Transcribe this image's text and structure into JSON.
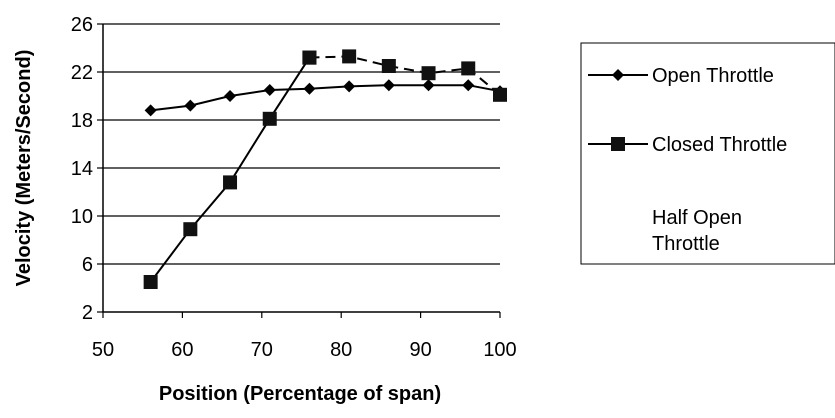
{
  "chart_data": {
    "type": "line",
    "title": "",
    "xlabel": "Position (Percentage of span)",
    "ylabel": "Velocity (Meters/Second)",
    "xlim": [
      50,
      100
    ],
    "ylim": [
      2,
      26
    ],
    "xticks": [
      50,
      60,
      70,
      80,
      90,
      100
    ],
    "yticks": [
      2,
      6,
      10,
      14,
      18,
      22,
      26
    ],
    "grid": "horizontal",
    "legend_position": "right",
    "series": [
      {
        "name": "Open Throttle",
        "marker": "diamond",
        "line_style": "solid",
        "color": "#000000",
        "x": [
          56,
          61,
          66,
          71,
          76,
          81,
          86,
          91,
          96,
          100
        ],
        "y": [
          18.8,
          19.2,
          20.0,
          20.5,
          20.6,
          20.8,
          20.9,
          20.9,
          20.9,
          20.4
        ]
      },
      {
        "name": "Closed Throttle",
        "marker": "square",
        "line_style": "solid",
        "color": "#000000",
        "x": [
          56,
          61,
          66,
          71,
          76
        ],
        "y": [
          4.5,
          8.9,
          12.8,
          18.1,
          23.2
        ]
      },
      {
        "name": "Half Open Throttle",
        "marker": "square",
        "line_style": "dashed",
        "color": "#000000",
        "x": [
          76,
          81,
          86,
          91,
          96,
          100
        ],
        "y": [
          23.2,
          23.3,
          22.5,
          21.9,
          22.3,
          20.1
        ]
      }
    ]
  }
}
